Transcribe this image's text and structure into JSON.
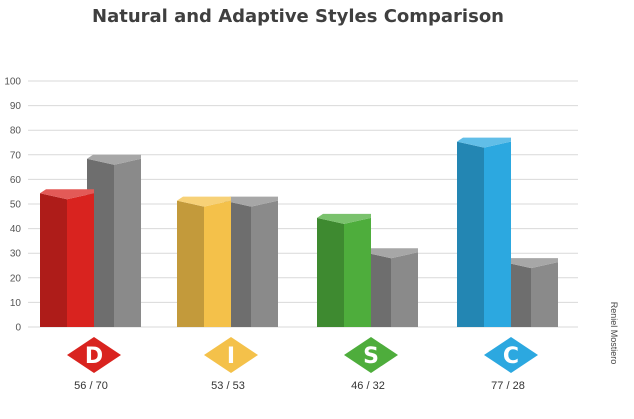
{
  "chart_data": {
    "type": "bar",
    "title": "Natural and Adaptive Styles Comparison",
    "categories": [
      "D",
      "I",
      "S",
      "C"
    ],
    "series": [
      {
        "values": [
          56,
          53,
          46,
          77
        ]
      },
      {
        "values": [
          70,
          53,
          32,
          28
        ]
      }
    ],
    "ylim": [
      0,
      100
    ],
    "yticks": [
      0,
      10,
      20,
      30,
      40,
      50,
      60,
      70,
      80,
      90,
      100
    ],
    "grid": true,
    "category_labels": [
      "56 / 70",
      "53 / 53",
      "46 / 32",
      "77 / 28"
    ],
    "colors": {
      "D": "#d9231f",
      "I": "#f4c14a",
      "S": "#4ead3c",
      "C": "#2ca8e0",
      "adaptive": "#8a8a8a"
    }
  },
  "credit": "Reniel Mostiero"
}
